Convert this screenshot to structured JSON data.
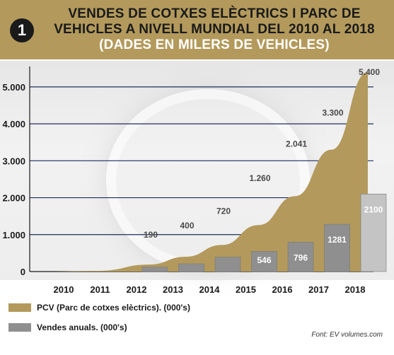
{
  "header": {
    "number": "1",
    "title": "VENDES DE COTXES ELÈCTRICS I PARC DE VEHICLES A NIVELL MUNDIAL DEL 2010 AL 2018",
    "subtitle": "(DADES EN MILERS DE VEHICLES)"
  },
  "colors": {
    "header_bg": "#b39a5c",
    "pcv": "#b39a5c",
    "sales_bar": "#8f8f8f",
    "sales_bar_last": "#c4c4c4",
    "grid": "#1f2e5a"
  },
  "legend": {
    "pcv_label": "PCV (Parc de cotxes elèctrics). (000's)",
    "sales_label": "Vendes anuals. (000's)"
  },
  "source": "Font: EV volumes.com",
  "chart_data": {
    "type": "bar",
    "categories": [
      "2010",
      "2011",
      "2012",
      "2013",
      "2014",
      "2015",
      "2016",
      "2017",
      "2018"
    ],
    "ylim": [
      0,
      5400
    ],
    "yticks": [
      "0",
      "1.000",
      "2.000",
      "3.000",
      "4.000",
      "5.000"
    ],
    "grid": true,
    "series": [
      {
        "name": "PCV (Parc de cotxes elèctrics). (000's)",
        "chart_type": "area",
        "values": [
          null,
          null,
          190,
          400,
          720,
          1260,
          2041,
          3300,
          5400
        ],
        "labels": [
          "",
          "",
          "190",
          "400",
          "720",
          "1.260",
          "2.041",
          "3.300",
          "5.400"
        ]
      },
      {
        "name": "Vendes anuals. (000's)",
        "chart_type": "bar",
        "values": [
          null,
          null,
          120,
          210,
          390,
          546,
          796,
          1281,
          2100
        ],
        "labels": [
          "",
          "",
          "",
          "",
          "",
          "546",
          "796",
          "1281",
          "2100"
        ]
      }
    ]
  }
}
